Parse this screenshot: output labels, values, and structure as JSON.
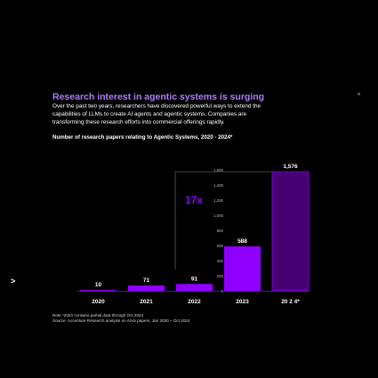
{
  "header": {
    "title": "Research interest in agentic systems is surging",
    "description": "Over the past two years, researchers have discovered powerful ways to extend the capabilities of LLMs to create AI agents and agentic systems. Companies are transforming these research efforts into commercial offerings rapidly.",
    "corner_mark": "a",
    "side_marker": ">"
  },
  "chart_data": {
    "type": "bar",
    "subtitle": "Number of research papers relating to Agentic Systems, 2020 - 2024*",
    "categories": [
      "2020",
      "2021",
      "2022",
      "2023",
      "20 2 4*"
    ],
    "values": [
      10,
      71,
      91,
      588,
      1576
    ],
    "value_labels": [
      "10",
      "71",
      "91",
      "588",
      "1,576"
    ],
    "ylim": [
      0,
      1600
    ],
    "y_ticks": [
      0,
      200,
      400,
      600,
      800,
      1000,
      1200,
      1400,
      1600
    ],
    "y_tick_labels": [
      "0",
      "200",
      "400",
      "600",
      "800",
      "1,000",
      "1,200",
      "1,400",
      "1,600"
    ],
    "grid": false,
    "legend": "none",
    "growth_annotation": "17x",
    "colors": {
      "bar": "#9000ff",
      "highlight_bar": "#460072",
      "accent_text": "#b07cff",
      "annotation_text": "#8a00ff",
      "baseline": "#7a00ff",
      "bracket": "#666666"
    }
  },
  "footnote": {
    "note": "Note *2024 contains partial data through Oct 2024",
    "source": "Source: Accenture Research analysis on Arxiv papers, Jan 2020 – Oct 2024"
  }
}
